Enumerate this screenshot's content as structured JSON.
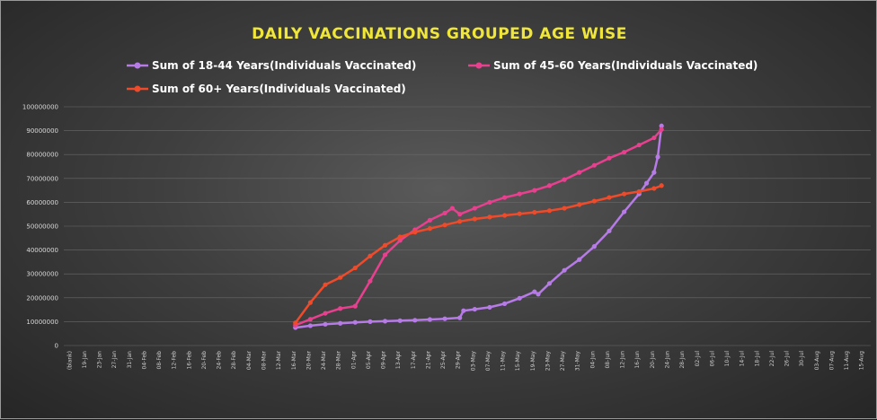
{
  "chart_data": {
    "type": "line",
    "title": "DAILY VACCINATIONS GROUPED AGE WISE",
    "xlabel": "",
    "ylabel": "",
    "ylim": [
      0,
      100000000
    ],
    "yticks": [
      0,
      10000000,
      20000000,
      30000000,
      40000000,
      50000000,
      60000000,
      70000000,
      80000000,
      90000000,
      100000000
    ],
    "ytick_labels": [
      "0",
      "10000000",
      "20000000",
      "30000000",
      "40000000",
      "50000000",
      "60000000",
      "70000000",
      "80000000",
      "90000000",
      "100000000"
    ],
    "x_tick_labels": [
      "(blank)",
      "19-Jan",
      "23-Jan",
      "27-Jan",
      "31-Jan",
      "04-Feb",
      "08-Feb",
      "12-Feb",
      "16-Feb",
      "20-Feb",
      "24-Feb",
      "28-Feb",
      "04-Mar",
      "08-Mar",
      "12-Mar",
      "16-Mar",
      "20-Mar",
      "24-Mar",
      "28-Mar",
      "01-Apr",
      "05-Apr",
      "09-Apr",
      "13-Apr",
      "17-Apr",
      "21-Apr",
      "25-Apr",
      "29-Apr",
      "03-May",
      "07-May",
      "11-May",
      "15-May",
      "19-May",
      "23-May",
      "27-May",
      "31-May",
      "04-Jun",
      "08-Jun",
      "12-Jun",
      "16-Jun",
      "20-Jun",
      "24-Jun",
      "28-Jun",
      "02-Jul",
      "06-Jul",
      "10-Jul",
      "14-Jul",
      "18-Jul",
      "22-Jul",
      "26-Jul",
      "30-Jul",
      "03-Aug",
      "07-Aug",
      "11-Aug",
      "15-Aug"
    ],
    "grid": true,
    "legend_position": "top",
    "series": [
      {
        "name": "Sum of 18-44 Years(Individuals Vaccinated)",
        "color": "#b77be8",
        "x": [
          "16-Mar",
          "20-Mar",
          "24-Mar",
          "28-Mar",
          "01-Apr",
          "05-Apr",
          "09-Apr",
          "13-Apr",
          "17-Apr",
          "21-Apr",
          "25-Apr",
          "29-Apr",
          "30-Apr",
          "03-May",
          "07-May",
          "11-May",
          "15-May",
          "19-May",
          "20-May",
          "23-May",
          "27-May",
          "31-May",
          "04-Jun",
          "08-Jun",
          "12-Jun",
          "16-Jun",
          "18-Jun",
          "20-Jun",
          "21-Jun",
          "22-Jun"
        ],
        "values": [
          7500000,
          8300000,
          8900000,
          9300000,
          9700000,
          10000000,
          10200000,
          10400000,
          10600000,
          10900000,
          11200000,
          11600000,
          14600000,
          15200000,
          16000000,
          17500000,
          19800000,
          22500000,
          21500000,
          26000000,
          31500000,
          36000000,
          41500000,
          48000000,
          56000000,
          63500000,
          68000000,
          72500000,
          79000000,
          92000000
        ]
      },
      {
        "name": "Sum of 45-60 Years(Individuals Vaccinated)",
        "color": "#e8408f",
        "x": [
          "16-Mar",
          "20-Mar",
          "24-Mar",
          "28-Mar",
          "01-Apr",
          "05-Apr",
          "09-Apr",
          "13-Apr",
          "17-Apr",
          "21-Apr",
          "25-Apr",
          "27-Apr",
          "29-Apr",
          "03-May",
          "07-May",
          "11-May",
          "15-May",
          "19-May",
          "23-May",
          "27-May",
          "31-May",
          "04-Jun",
          "08-Jun",
          "12-Jun",
          "16-Jun",
          "20-Jun",
          "22-Jun"
        ],
        "values": [
          8500000,
          11000000,
          13500000,
          15500000,
          16500000,
          27000000,
          38000000,
          44000000,
          48500000,
          52500000,
          55500000,
          57500000,
          55000000,
          57500000,
          60000000,
          62000000,
          63500000,
          65000000,
          67000000,
          69500000,
          72500000,
          75500000,
          78500000,
          81000000,
          84000000,
          87000000,
          90500000
        ]
      },
      {
        "name": "Sum of 60+ Years(Individuals Vaccinated)",
        "color": "#ef4b2b",
        "x": [
          "16-Mar",
          "20-Mar",
          "24-Mar",
          "28-Mar",
          "01-Apr",
          "05-Apr",
          "09-Apr",
          "13-Apr",
          "17-Apr",
          "21-Apr",
          "25-Apr",
          "29-Apr",
          "03-May",
          "07-May",
          "11-May",
          "15-May",
          "19-May",
          "23-May",
          "27-May",
          "31-May",
          "04-Jun",
          "08-Jun",
          "12-Jun",
          "16-Jun",
          "20-Jun",
          "22-Jun"
        ],
        "values": [
          9500000,
          18000000,
          25500000,
          28500000,
          32500000,
          37500000,
          42000000,
          45500000,
          47500000,
          49000000,
          50500000,
          52000000,
          53000000,
          53800000,
          54500000,
          55200000,
          55800000,
          56500000,
          57500000,
          59000000,
          60500000,
          62000000,
          63500000,
          64500000,
          65800000,
          67000000
        ]
      }
    ]
  }
}
